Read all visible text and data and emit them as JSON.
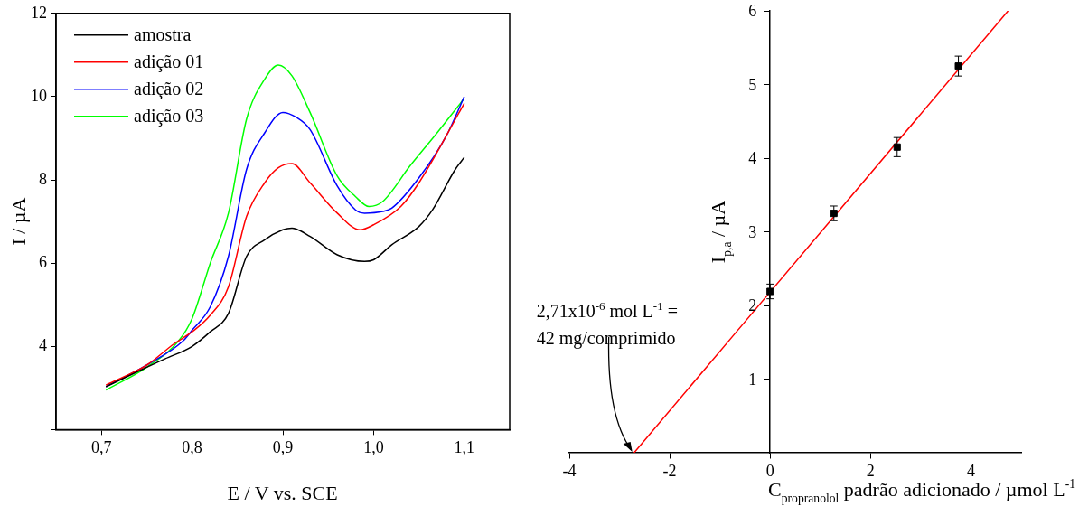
{
  "chart_data": [
    {
      "type": "line",
      "xlabel": "E / V vs. SCE",
      "ylabel": "I / µA",
      "xlim": [
        0.65,
        1.15
      ],
      "xticks": [
        {
          "value": 0.7,
          "label": "0,7"
        },
        {
          "value": 0.8,
          "label": "0,8"
        },
        {
          "value": 0.9,
          "label": "0,9"
        },
        {
          "value": 1.0,
          "label": "1,0"
        },
        {
          "value": 1.1,
          "label": "1,1"
        }
      ],
      "ylim": [
        2,
        12
      ],
      "yticks": [
        {
          "value": 2,
          "label": null
        },
        4,
        6,
        8,
        10,
        12
      ],
      "grid": false,
      "legend": "top left",
      "series": [
        {
          "name": "amostra",
          "color": "#000000",
          "x": [
            0.705,
            0.75,
            0.77,
            0.8,
            0.82,
            0.84,
            0.86,
            0.88,
            0.9,
            0.91,
            0.93,
            0.96,
            0.99,
            1.0,
            1.02,
            1.05,
            1.065,
            1.09,
            1.1
          ],
          "values": [
            3.03,
            3.5,
            3.7,
            4.0,
            4.35,
            4.79,
            6.16,
            6.56,
            6.8,
            6.84,
            6.64,
            6.2,
            6.04,
            6.08,
            6.44,
            6.88,
            7.28,
            8.25,
            8.54
          ]
        },
        {
          "name": "adição 01",
          "color": "#ff0000",
          "x": [
            0.705,
            0.75,
            0.78,
            0.8,
            0.82,
            0.84,
            0.86,
            0.88,
            0.895,
            0.91,
            0.93,
            0.96,
            0.985,
            1.0,
            1.03,
            1.05,
            1.1
          ],
          "values": [
            3.07,
            3.55,
            4.06,
            4.35,
            4.75,
            5.43,
            7.12,
            7.93,
            8.29,
            8.39,
            7.93,
            7.2,
            6.8,
            6.92,
            7.36,
            7.93,
            9.84
          ]
        },
        {
          "name": "adição 02",
          "color": "#0000ff",
          "x": [
            0.705,
            0.75,
            0.79,
            0.8,
            0.82,
            0.84,
            0.86,
            0.88,
            0.9,
            0.915,
            0.93,
            0.96,
            0.98,
            0.99,
            1.01,
            1.02,
            1.05,
            1.08,
            1.1
          ],
          "values": [
            3.03,
            3.55,
            4.13,
            4.39,
            4.95,
            6.16,
            8.25,
            9.13,
            9.62,
            9.5,
            9.21,
            7.85,
            7.28,
            7.2,
            7.24,
            7.32,
            8.05,
            9.05,
            10.0
          ]
        },
        {
          "name": "adição 03",
          "color": "#00ff00",
          "x": [
            0.705,
            0.75,
            0.785,
            0.8,
            0.82,
            0.84,
            0.86,
            0.88,
            0.895,
            0.91,
            0.93,
            0.96,
            0.98,
            0.995,
            1.01,
            1.04,
            1.07,
            1.1
          ],
          "values": [
            2.95,
            3.5,
            4.13,
            4.67,
            6.0,
            7.2,
            9.46,
            10.42,
            10.76,
            10.5,
            9.62,
            8.09,
            7.6,
            7.36,
            7.48,
            8.33,
            9.13,
            9.96
          ]
        }
      ]
    },
    {
      "type": "scatter",
      "xlabel": "C$_{propranolol}$ padrão adicionado / µmol L$^{-1}$",
      "ylabel": "I$_{p,a}$ / µA",
      "xlim": [
        -4,
        5
      ],
      "xticks": [
        -4,
        -2,
        0,
        2,
        4
      ],
      "ylim": [
        0,
        6
      ],
      "yticks": [
        1,
        2,
        3,
        4,
        5,
        6
      ],
      "grid": false,
      "legend": false,
      "annotations": [
        {
          "text": "2,71x10$^{-6}$ mol L$^{-1}$ = 42 mg/comprimido",
          "x": -2.71,
          "y": 0
        }
      ],
      "series": [
        {
          "type": "scatter",
          "marker": "square",
          "color": "#000000",
          "x": [
            0,
            1.27,
            2.53,
            3.75
          ],
          "values": [
            2.19,
            3.25,
            4.15,
            5.25
          ],
          "errors": [
            0.1,
            0.1,
            0.13,
            0.135
          ]
        },
        {
          "type": "line",
          "color": "#ff0000",
          "x": [
            -2.71,
            4.74
          ],
          "values": [
            0,
            6
          ]
        }
      ]
    }
  ]
}
